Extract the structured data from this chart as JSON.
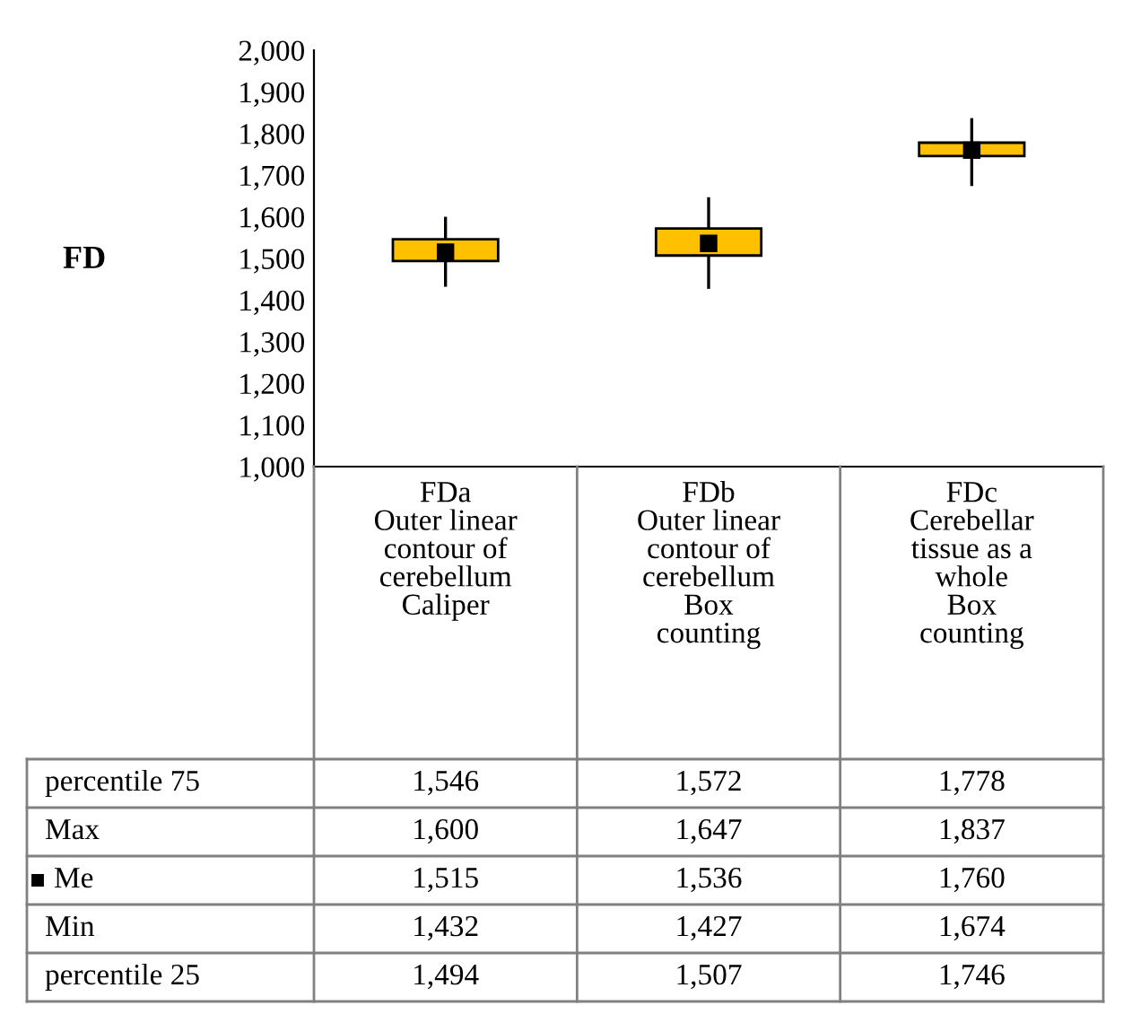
{
  "chart_data": {
    "type": "box",
    "ylabel": "FD",
    "categories": [
      "FDa\nOuter linear\ncontour of\ncerebellum\nCaliper",
      "FDb\nOuter linear\ncontour of\ncerebellum\nBox\ncounting",
      "FDc\nCerebellar\ntissue as a\nwhole\nBox\ncounting"
    ],
    "boxes": [
      {
        "low": 1432,
        "q1": 1494,
        "q3": 1546,
        "high": 1600
      },
      {
        "low": 1427,
        "q1": 1507,
        "q3": 1572,
        "high": 1647
      },
      {
        "low": 1674,
        "q1": 1746,
        "q3": 1778,
        "high": 1837
      }
    ],
    "color": "#ffc000",
    "ylim": [
      1000,
      2000
    ],
    "yticks": [
      {
        "value": 1000,
        "label": "1,000"
      },
      {
        "value": 1100,
        "label": "1,100"
      },
      {
        "value": 1200,
        "label": "1,200"
      },
      {
        "value": 1300,
        "label": "1,300"
      },
      {
        "value": 1400,
        "label": "1,400"
      },
      {
        "value": 1500,
        "label": "1,500"
      },
      {
        "value": 1600,
        "label": "1,600"
      },
      {
        "value": 1700,
        "label": "1,700"
      },
      {
        "value": 1800,
        "label": "1,800"
      },
      {
        "value": 1900,
        "label": "1,900"
      },
      {
        "value": 2000,
        "label": "2,000"
      }
    ],
    "series": [
      {
        "name": "Me",
        "type": "scatter",
        "marker": "square",
        "color": "#000000",
        "values": [
          1515,
          1536,
          1760
        ],
        "value_labels": [
          "1,515",
          "1,536",
          "1,760"
        ]
      }
    ],
    "annotations": [
      "percentile 75",
      "1,546",
      "1,572",
      "1,778",
      "Max",
      "1,600",
      "1,647",
      "1,837",
      "Min",
      "1,432",
      "1,427",
      "1,674",
      "percentile 25",
      "1,494",
      "1,507",
      "1,746"
    ],
    "grid": false,
    "legend": "bottom"
  }
}
